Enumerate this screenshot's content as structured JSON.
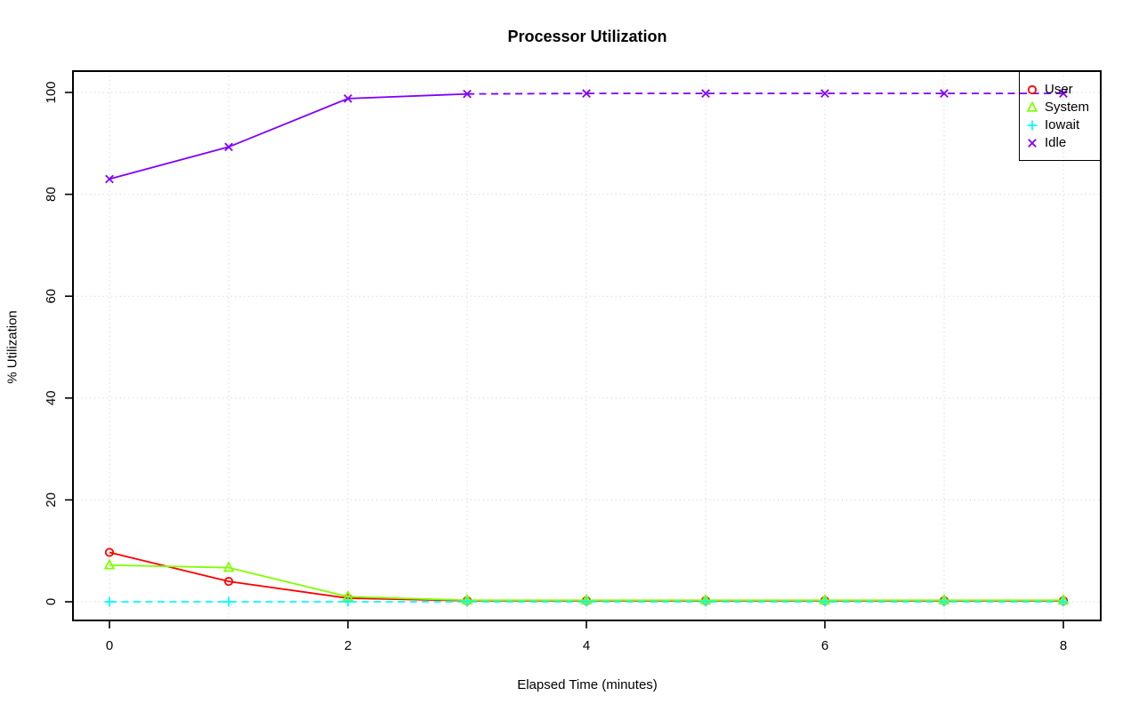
{
  "chart_data": {
    "type": "line",
    "title": "Processor Utilization",
    "xlabel": "Elapsed Time (minutes)",
    "ylabel": "% Utilization",
    "x": [
      0,
      1,
      2,
      3,
      4,
      5,
      6,
      7,
      8
    ],
    "xlim": [
      0,
      8
    ],
    "ylim": [
      0,
      100
    ],
    "x_ticks": [
      0,
      2,
      4,
      6,
      8
    ],
    "y_ticks": [
      0,
      20,
      40,
      60,
      80,
      100
    ],
    "grid": {
      "style": "dotted",
      "color": "#d2d2d2",
      "vertical_every": 1,
      "horizontal_every": 20
    },
    "legend_position": "top-right",
    "series": [
      {
        "name": "User",
        "color": "#ff0000",
        "marker": "circle",
        "line": "solid",
        "values": [
          9.7,
          4.0,
          0.7,
          0.2,
          0.2,
          0.2,
          0.2,
          0.2,
          0.2
        ]
      },
      {
        "name": "System",
        "color": "#80ff00",
        "marker": "triangle",
        "line": "solid",
        "values": [
          7.2,
          6.7,
          1.0,
          0.3,
          0.3,
          0.3,
          0.3,
          0.3,
          0.3
        ]
      },
      {
        "name": "Iowait",
        "color": "#00ffff",
        "marker": "plus",
        "line": "dashed",
        "values": [
          0,
          0,
          0,
          0,
          0,
          0,
          0,
          0,
          0
        ]
      },
      {
        "name": "Idle",
        "color": "#8000ff",
        "marker": "x",
        "line": "solid-then-dashed",
        "dash_from_index": 3,
        "values": [
          83,
          89.3,
          98.8,
          99.7,
          99.8,
          99.8,
          99.8,
          99.8,
          99.8
        ]
      }
    ]
  }
}
